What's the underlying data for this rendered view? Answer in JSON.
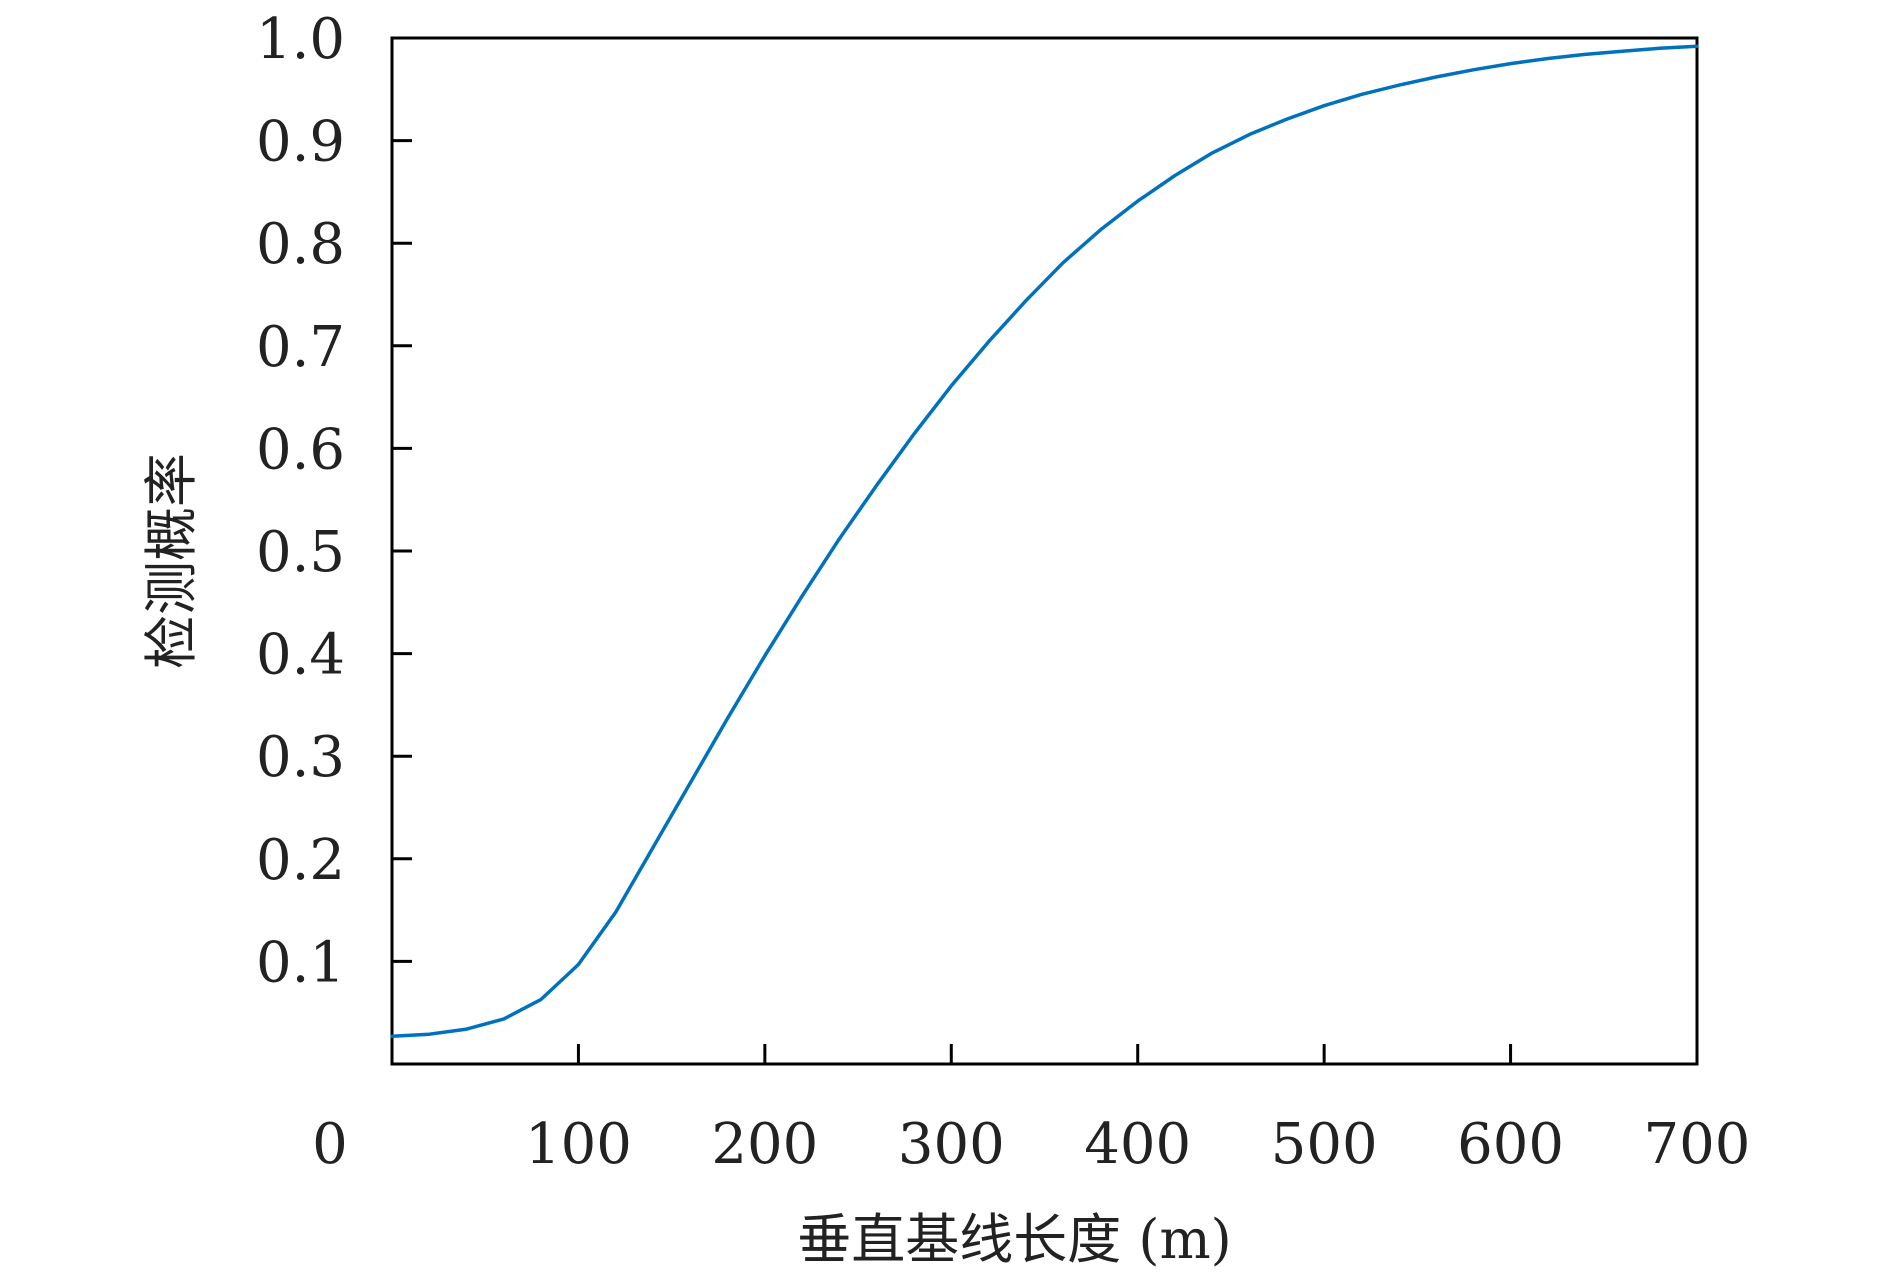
{
  "chart_data": {
    "type": "line",
    "title": "",
    "xlabel": "垂直基线长度 (m)",
    "ylabel": "检测概率",
    "xlim": [
      0,
      700
    ],
    "ylim": [
      0,
      1.0
    ],
    "x_ticks": [
      {
        "value": 0,
        "label": "0"
      },
      {
        "value": 100,
        "label": "100"
      },
      {
        "value": 200,
        "label": "200"
      },
      {
        "value": 300,
        "label": "300"
      },
      {
        "value": 400,
        "label": "400"
      },
      {
        "value": 500,
        "label": "500"
      },
      {
        "value": 600,
        "label": "600"
      },
      {
        "value": 700,
        "label": "700"
      }
    ],
    "y_ticks": [
      {
        "value": 0.1,
        "label": "0.1"
      },
      {
        "value": 0.2,
        "label": "0.2"
      },
      {
        "value": 0.3,
        "label": "0.3"
      },
      {
        "value": 0.4,
        "label": "0.4"
      },
      {
        "value": 0.5,
        "label": "0.5"
      },
      {
        "value": 0.6,
        "label": "0.6"
      },
      {
        "value": 0.7,
        "label": "0.7"
      },
      {
        "value": 0.8,
        "label": "0.8"
      },
      {
        "value": 0.9,
        "label": "0.9"
      },
      {
        "value": 1.0,
        "label": "1.0"
      }
    ],
    "grid": false,
    "legend": "none",
    "line_color": "#0072bd",
    "series": [
      {
        "x": [
          0,
          20,
          40,
          60,
          80,
          100,
          120,
          140,
          160,
          180,
          200,
          220,
          240,
          260,
          280,
          300,
          320,
          340,
          360,
          380,
          400,
          420,
          440,
          460,
          480,
          500,
          520,
          540,
          560,
          580,
          600,
          620,
          640,
          660,
          680,
          700
        ],
        "y": [
          0.027,
          0.029,
          0.034,
          0.044,
          0.063,
          0.097,
          0.148,
          0.211,
          0.274,
          0.337,
          0.398,
          0.456,
          0.512,
          0.564,
          0.614,
          0.661,
          0.704,
          0.744,
          0.781,
          0.813,
          0.841,
          0.866,
          0.888,
          0.906,
          0.921,
          0.934,
          0.945,
          0.954,
          0.962,
          0.969,
          0.975,
          0.98,
          0.984,
          0.987,
          0.99,
          0.992
        ]
      }
    ]
  }
}
